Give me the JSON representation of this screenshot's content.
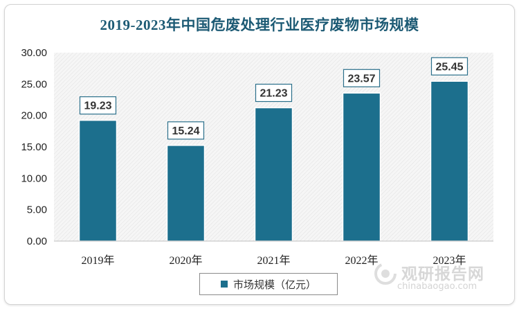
{
  "chart_data": {
    "type": "bar",
    "title": "2019-2023年中国危废处理行业医疗废物市场规模",
    "categories": [
      "2019年",
      "2020年",
      "2021年",
      "2022年",
      "2023年"
    ],
    "series": [
      {
        "name": "市场规模（亿元）",
        "values": [
          19.23,
          15.24,
          21.23,
          23.57,
          25.45
        ]
      }
    ],
    "value_labels": [
      "19.23",
      "15.24",
      "21.23",
      "23.57",
      "25.45"
    ],
    "ylim": [
      0,
      30
    ],
    "yticks": [
      "0.00",
      "5.00",
      "10.00",
      "15.00",
      "20.00",
      "25.00",
      "30.00"
    ],
    "ytick_values": [
      0,
      5,
      10,
      15,
      20,
      25,
      30
    ],
    "grid": false,
    "legend_position": "bottom",
    "bar_color": "#1c6f8d"
  },
  "watermark": {
    "cn": "观研报告网",
    "en": "chinabaogao.com"
  }
}
